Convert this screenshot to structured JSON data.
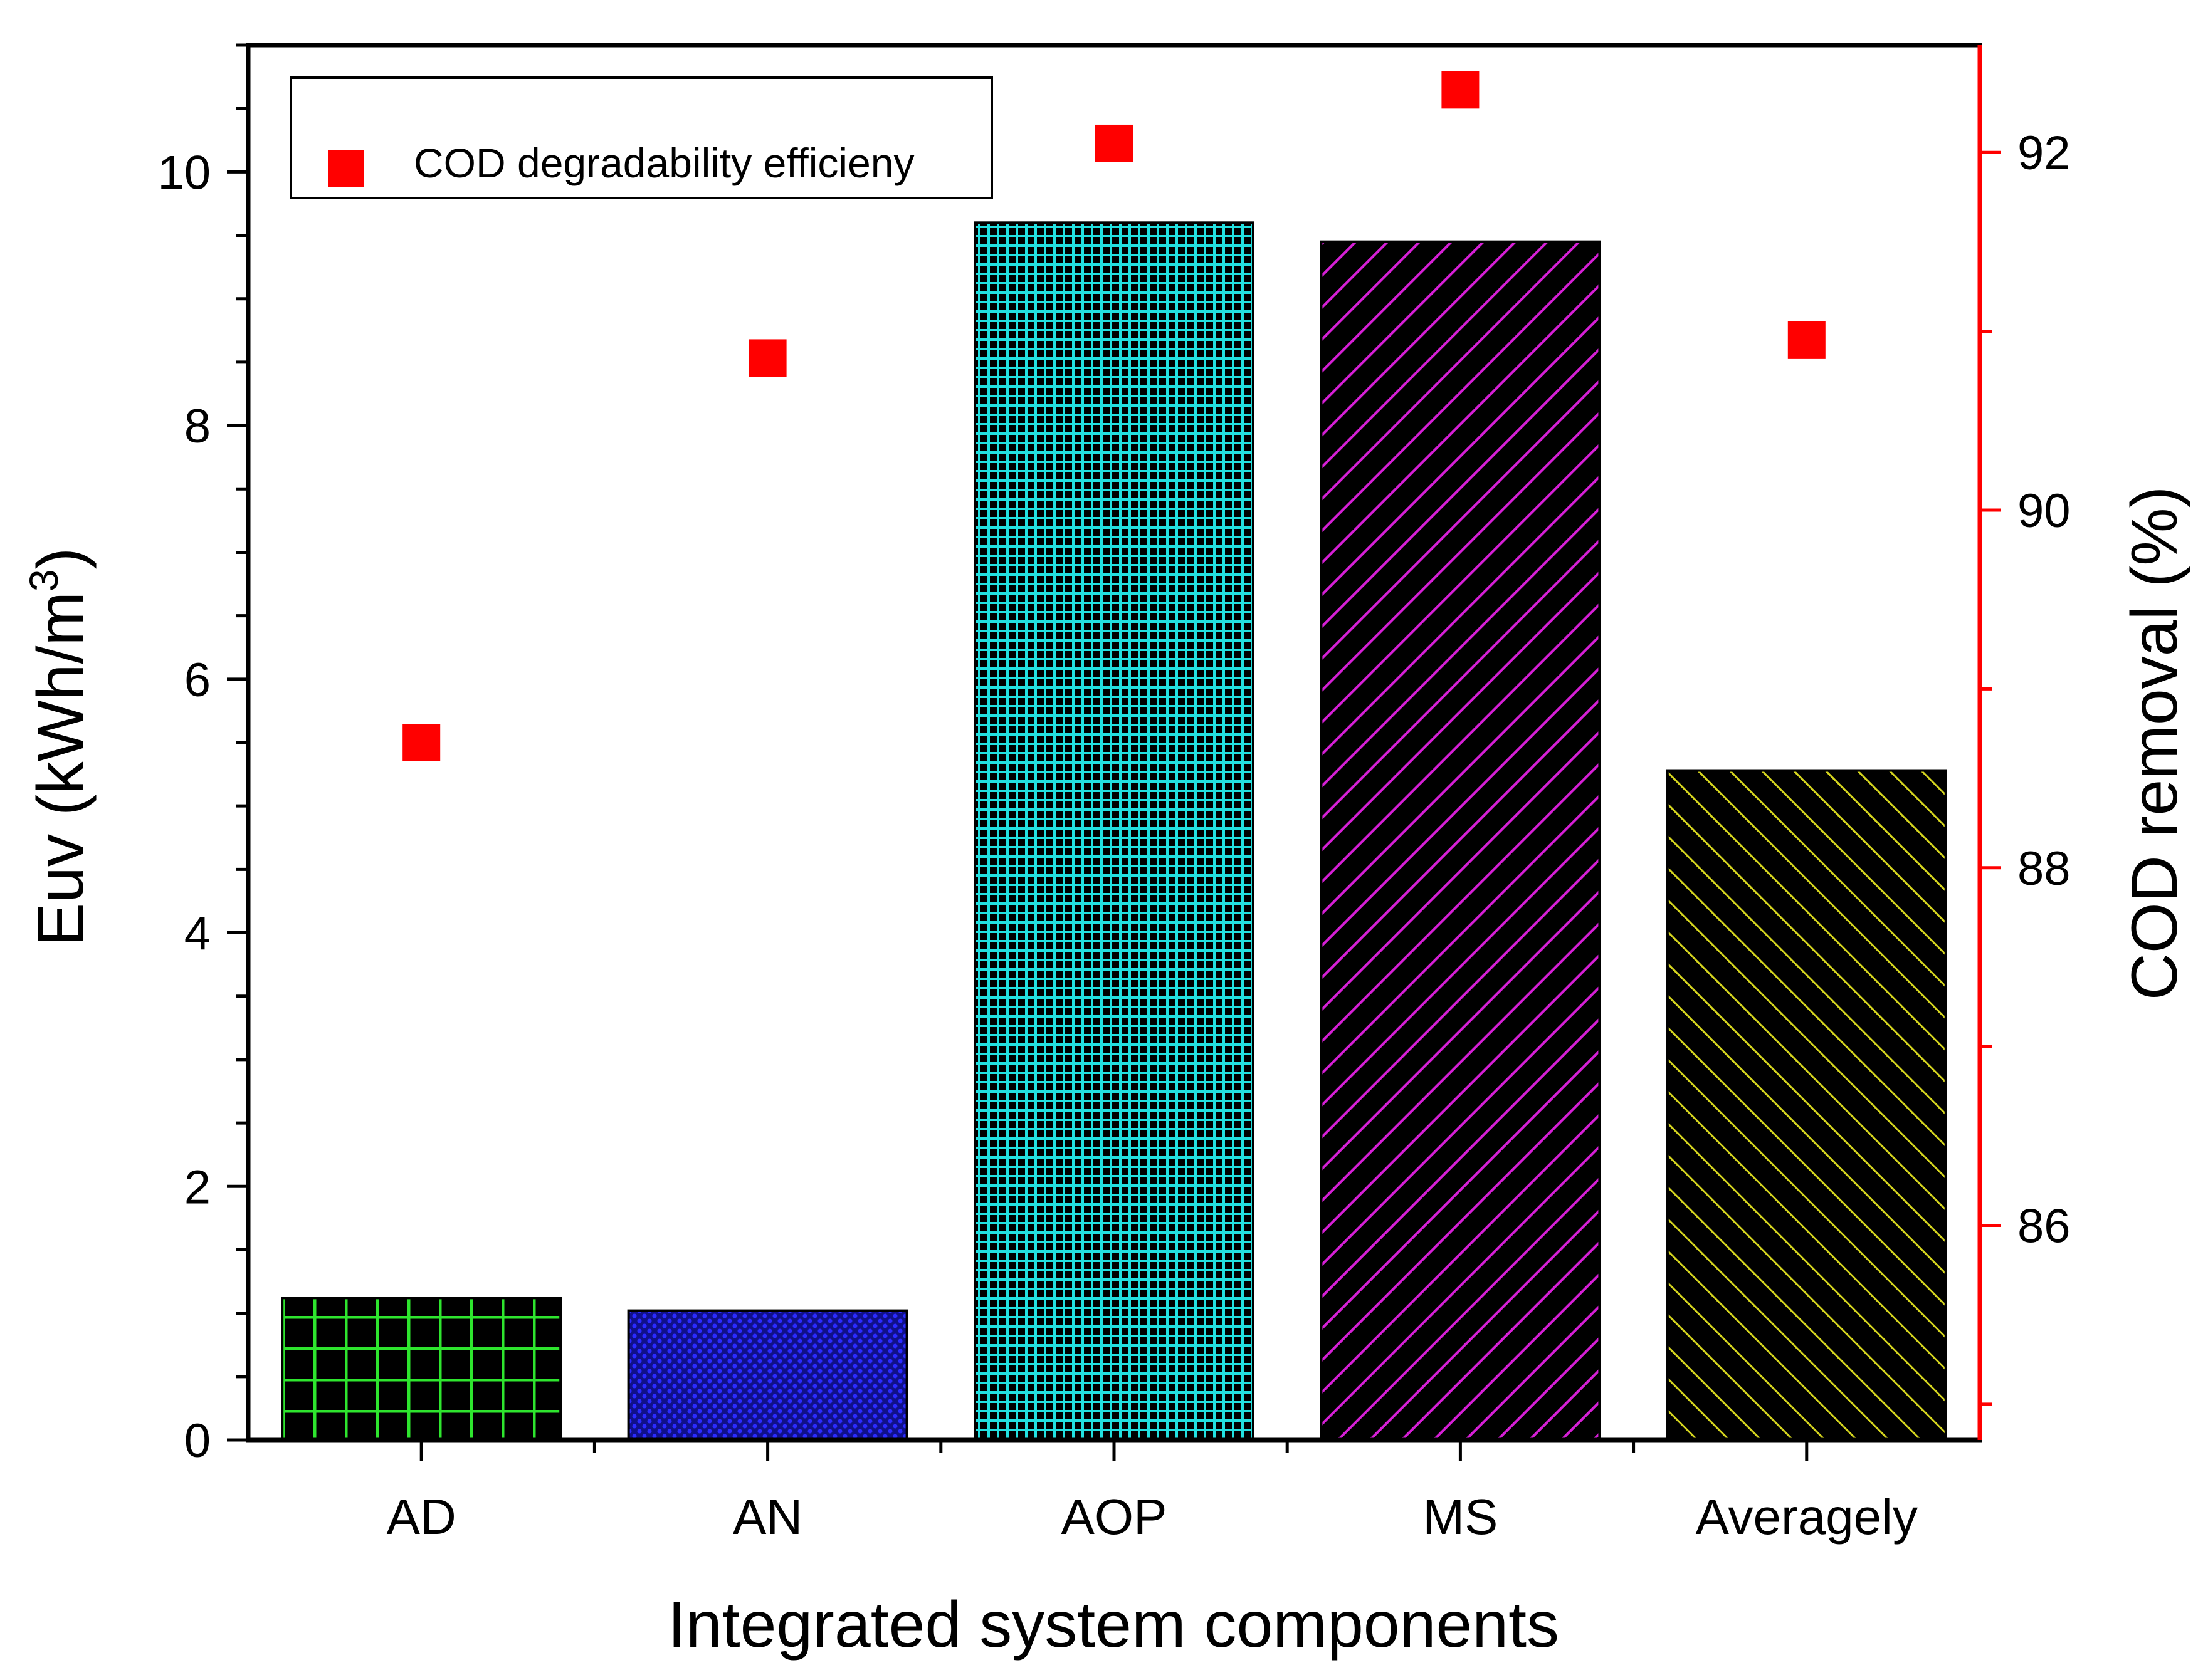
{
  "chart_data": {
    "type": "bar",
    "xlabel": "Integrated system components",
    "ylabel": "Euv (kWh/m",
    "ylabel_superscript": "3",
    "ylabel_close": ")",
    "y2label": "COD removal (%)",
    "categories": [
      "AD",
      "AN",
      "AOP",
      "MS",
      "Averagely"
    ],
    "bar_series": {
      "name": "Euv",
      "values": [
        1.12,
        1.02,
        9.6,
        9.45,
        5.28
      ],
      "patterns": [
        "grid-green",
        "dots-blue",
        "checker-cyan",
        "hatch-magenta",
        "hatch-yellow"
      ]
    },
    "scatter_series": {
      "name": "COD degradability efficieny",
      "values": [
        88.7,
        90.85,
        92.05,
        92.35,
        90.95
      ],
      "color": "#ff0000"
    },
    "ylim": [
      0,
      11
    ],
    "y2lim": [
      84.8,
      92.6
    ],
    "yticks": [
      0,
      2,
      4,
      6,
      8,
      10
    ],
    "y2ticks": [
      86,
      88,
      90,
      92
    ],
    "legend": {
      "label": "COD degradability efficieny",
      "position": "top-left"
    },
    "colors": {
      "axis": "#000000",
      "right_axis": "#ff0000",
      "scatter": "#ff0000",
      "green": "#2ee52e",
      "blue": "#1d1dd6",
      "cyan": "#22e0e0",
      "magenta": "#d61fd6",
      "yellow": "#d6d61f"
    }
  }
}
